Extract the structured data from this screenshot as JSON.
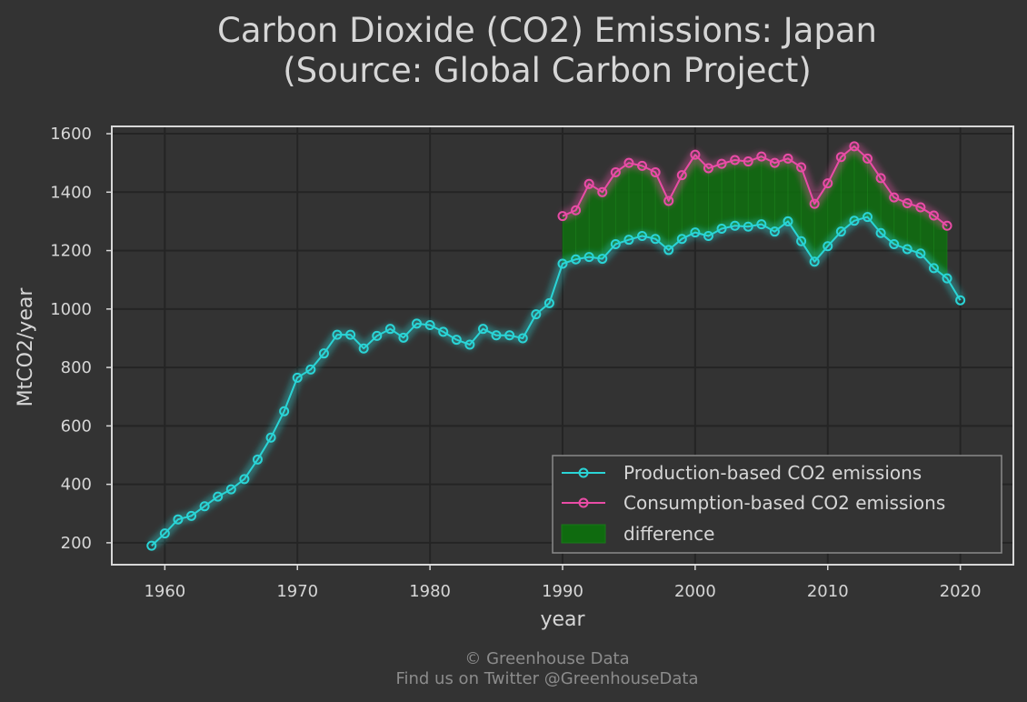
{
  "chart_data": {
    "type": "line",
    "title_line1": "Carbon Dioxide (CO2) Emissions: Japan",
    "title_line2": "(Source: Global Carbon Project)",
    "xlabel": "year",
    "ylabel": "MtCO2/year",
    "xlim": [
      1956,
      2024
    ],
    "ylim": [
      125,
      1625
    ],
    "x_ticks": [
      1960,
      1970,
      1980,
      1990,
      2000,
      2010,
      2020
    ],
    "y_ticks": [
      200,
      400,
      600,
      800,
      1000,
      1200,
      1400,
      1600
    ],
    "grid": true,
    "legend_position": "lower-right",
    "series": [
      {
        "name": "Production-based CO2 emissions",
        "color": "#2ad4d6",
        "x": [
          1959,
          1960,
          1961,
          1962,
          1963,
          1964,
          1965,
          1966,
          1967,
          1968,
          1969,
          1970,
          1971,
          1972,
          1973,
          1974,
          1975,
          1976,
          1977,
          1978,
          1979,
          1980,
          1981,
          1982,
          1983,
          1984,
          1985,
          1986,
          1987,
          1988,
          1989,
          1990,
          1991,
          1992,
          1993,
          1994,
          1995,
          1996,
          1997,
          1998,
          1999,
          2000,
          2001,
          2002,
          2003,
          2004,
          2005,
          2006,
          2007,
          2008,
          2009,
          2010,
          2011,
          2012,
          2013,
          2014,
          2015,
          2016,
          2017,
          2018,
          2019,
          2020
        ],
        "values": [
          190,
          232,
          280,
          292,
          325,
          358,
          383,
          418,
          485,
          560,
          650,
          765,
          793,
          848,
          912,
          912,
          865,
          908,
          932,
          902,
          950,
          945,
          922,
          895,
          878,
          932,
          910,
          910,
          900,
          982,
          1020,
          1155,
          1170,
          1178,
          1172,
          1222,
          1237,
          1250,
          1240,
          1202,
          1240,
          1262,
          1250,
          1275,
          1285,
          1282,
          1290,
          1265,
          1300,
          1232,
          1162,
          1215,
          1265,
          1302,
          1315,
          1260,
          1222,
          1205,
          1190,
          1140,
          1105,
          1030
        ]
      },
      {
        "name": "Consumption-based CO2 emissions",
        "color": "#e94ca6",
        "x": [
          1990,
          1991,
          1992,
          1993,
          1994,
          1995,
          1996,
          1997,
          1998,
          1999,
          2000,
          2001,
          2002,
          2003,
          2004,
          2005,
          2006,
          2007,
          2008,
          2009,
          2010,
          2011,
          2012,
          2013,
          2014,
          2015,
          2016,
          2017,
          2018,
          2019
        ],
        "values": [
          1318,
          1338,
          1428,
          1400,
          1468,
          1500,
          1490,
          1468,
          1370,
          1458,
          1528,
          1482,
          1497,
          1510,
          1505,
          1522,
          1500,
          1515,
          1485,
          1360,
          1430,
          1520,
          1557,
          1515,
          1448,
          1382,
          1362,
          1348,
          1320,
          1285
        ]
      }
    ],
    "difference": {
      "name": "difference",
      "color": "#0f6b0f"
    },
    "footer_line1": "© Greenhouse Data",
    "footer_line2": "Find us on Twitter @GreenhouseData"
  }
}
